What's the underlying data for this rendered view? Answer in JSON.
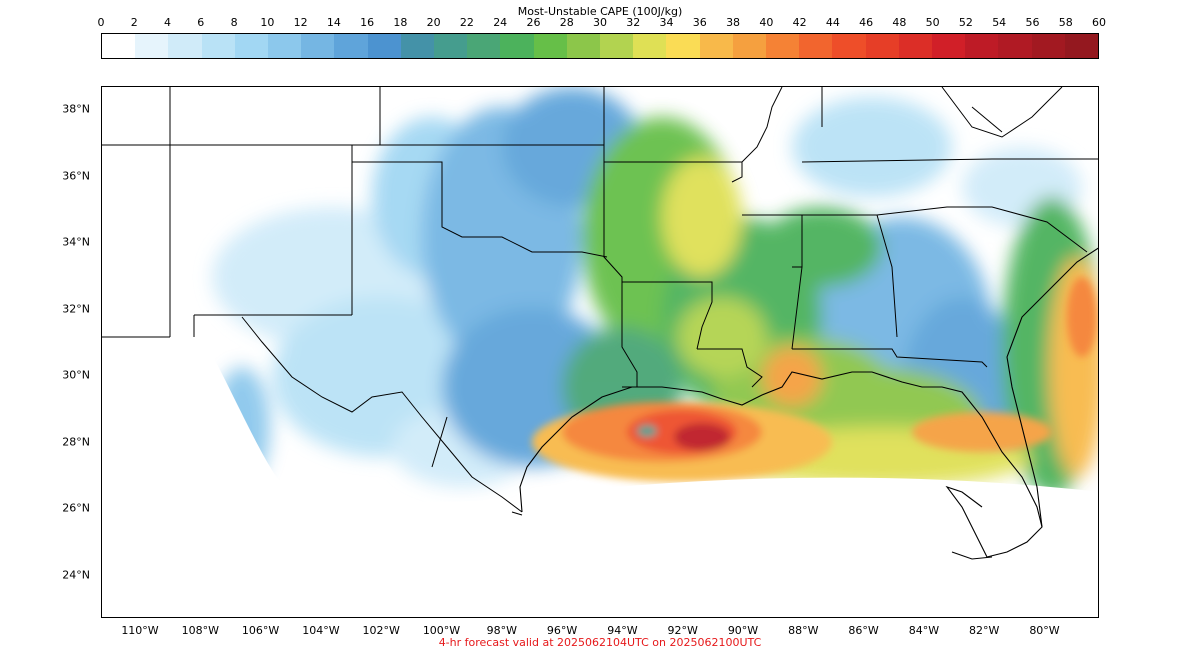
{
  "colorbar": {
    "title": "Most-Unstable CAPE (100J/kg)",
    "ticks": [
      "0",
      "2",
      "4",
      "6",
      "8",
      "10",
      "12",
      "14",
      "16",
      "18",
      "20",
      "22",
      "24",
      "26",
      "28",
      "30",
      "32",
      "34",
      "36",
      "38",
      "40",
      "42",
      "44",
      "46",
      "48",
      "50",
      "52",
      "54",
      "56",
      "58",
      "60"
    ],
    "colors": [
      "#ffffff",
      "#e6f4fc",
      "#d0ebf9",
      "#b9e2f6",
      "#a2d7f3",
      "#8cc8ec",
      "#75b6e3",
      "#5fa4da",
      "#4c93d0",
      "#4492a8",
      "#459d8e",
      "#4aa676",
      "#4cb25c",
      "#66bf48",
      "#8cc64a",
      "#b2d350",
      "#dfe055",
      "#fadc55",
      "#f8b94a",
      "#f5a03f",
      "#f58235",
      "#f2652e",
      "#ee4e29",
      "#e63e27",
      "#dc2e27",
      "#d11f28",
      "#be1b26",
      "#b01a24",
      "#a21921",
      "#94181f"
    ]
  },
  "map": {
    "lat_labels": [
      "38°N",
      "36°N",
      "34°N",
      "32°N",
      "30°N",
      "28°N",
      "26°N",
      "24°N"
    ],
    "lon_labels": [
      "110°W",
      "108°W",
      "106°W",
      "104°W",
      "102°W",
      "100°W",
      "98°W",
      "96°W",
      "94°W",
      "92°W",
      "90°W",
      "88°W",
      "86°W",
      "84°W",
      "82°W",
      "80°W"
    ]
  },
  "footer": "4-hr forecast valid at 2025062104UTC on 2025062100UTC"
}
